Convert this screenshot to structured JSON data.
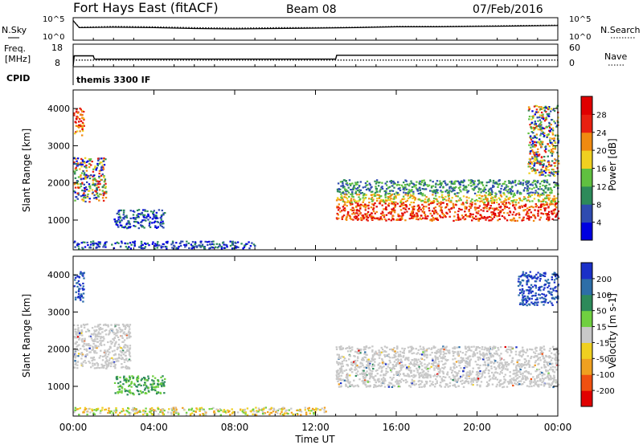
{
  "header": {
    "title": "Fort Hays East (fitACF)",
    "beam": "Beam 08",
    "date": "07/Feb/2016"
  },
  "noise_panel": {
    "left_label": "N.Sky",
    "left_ticks": [
      "10^5",
      "10^0"
    ],
    "right_label": "N.Search",
    "right_ticks": [
      "10^5",
      "10^0"
    ]
  },
  "freq_panel": {
    "left_label_1": "Freq.",
    "left_label_2": "[MHz]",
    "left_ticks": [
      "18",
      "8"
    ],
    "right_label": "Nave",
    "right_ticks": [
      "60",
      "0"
    ],
    "cpid_label": "CPID",
    "cpid_value": "themis 3300 IF"
  },
  "time_axis": {
    "label": "Time UT",
    "ticks": [
      "00:00",
      "04:00",
      "08:00",
      "12:00",
      "16:00",
      "20:00",
      "00:00"
    ]
  },
  "chart_data": [
    {
      "type": "line",
      "name": "noise",
      "x_unit": "hours UT",
      "x_range": [
        0,
        24
      ],
      "series": [
        {
          "name": "N.Sky",
          "style": "solid",
          "x": [
            0,
            0.3,
            2,
            4,
            6,
            8,
            10,
            12,
            14,
            16,
            18,
            20,
            22,
            24
          ],
          "y_log": [
            4.5,
            2.8,
            2.9,
            2.8,
            2.6,
            2.5,
            2.6,
            2.7,
            2.8,
            3.0,
            3.0,
            3.1,
            3.2,
            3.3
          ]
        },
        {
          "name": "N.Search",
          "style": "dotted",
          "x": [
            0,
            0.3,
            2,
            4,
            6,
            8,
            10,
            12,
            14,
            16,
            18,
            20,
            22,
            24
          ],
          "y_log": [
            4.5,
            2.9,
            3.1,
            3.0,
            2.8,
            2.7,
            2.8,
            2.8,
            2.9,
            3.1,
            3.1,
            3.2,
            3.3,
            3.4
          ]
        }
      ]
    },
    {
      "type": "line",
      "name": "frequency-nave",
      "x_unit": "hours UT",
      "x_range": [
        0,
        24
      ],
      "series": [
        {
          "name": "Freq",
          "style": "solid",
          "x": [
            0,
            0.05,
            1.0,
            1.05,
            13.0,
            13.05,
            24
          ],
          "y": [
            8,
            13.2,
            13.2,
            11.5,
            11.5,
            13.5,
            13.5
          ]
        },
        {
          "name": "Nave",
          "style": "dotted",
          "x": [
            0,
            24
          ],
          "y": [
            18,
            18
          ]
        }
      ]
    },
    {
      "type": "heatmap",
      "name": "power",
      "xlabel": "Time UT",
      "ylabel": "Slant Range [km]",
      "x_range": [
        0,
        24
      ],
      "ylim": [
        200,
        4500
      ],
      "y_ticks": [
        1000,
        2000,
        3000,
        4000
      ],
      "colorbar": {
        "label": "Power [dB]",
        "ticks": [
          "4",
          "8",
          "12",
          "16",
          "20",
          "24",
          "28"
        ],
        "colors": [
          "#0000e0",
          "#2f4bb0",
          "#2d8a5a",
          "#60c040",
          "#f0d020",
          "#f08a10",
          "#e82010",
          "#e00000"
        ]
      },
      "regions": [
        {
          "t0": 0.0,
          "t1": 0.5,
          "r0": 3300,
          "r1": 4100,
          "level": "high"
        },
        {
          "t0": 0.0,
          "t1": 1.6,
          "r0": 1500,
          "r1": 2700,
          "level": "mixed"
        },
        {
          "t0": 2.0,
          "t1": 4.5,
          "r0": 800,
          "r1": 1300,
          "level": "low"
        },
        {
          "t0": 0.0,
          "t1": 9.0,
          "r0": 250,
          "r1": 450,
          "level": "low"
        },
        {
          "t0": 13.0,
          "t1": 24.0,
          "r0": 1000,
          "r1": 2100,
          "level": "high-core"
        },
        {
          "t0": 22.5,
          "t1": 24.0,
          "r0": 2200,
          "r1": 4100,
          "level": "mixed"
        }
      ]
    },
    {
      "type": "heatmap",
      "name": "velocity",
      "xlabel": "Time UT",
      "ylabel": "Slant Range [km]",
      "x_range": [
        0,
        24
      ],
      "ylim": [
        200,
        4500
      ],
      "y_ticks": [
        1000,
        2000,
        3000,
        4000
      ],
      "colorbar": {
        "label": "Velocity [m s-1]",
        "ticks": [
          "200",
          "100",
          "50",
          "15",
          "-15",
          "-50",
          "-100",
          "-200"
        ],
        "colors": [
          "#1a30c8",
          "#2d6ea8",
          "#2d8a5a",
          "#70d040",
          "#c8c8c8",
          "#f0d020",
          "#f0a020",
          "#f05010",
          "#e00000"
        ]
      },
      "regions": [
        {
          "t0": 0.0,
          "t1": 0.5,
          "r0": 3300,
          "r1": 4100,
          "level": "200"
        },
        {
          "t0": 0.0,
          "t1": 2.8,
          "r0": 1500,
          "r1": 2700,
          "level": "-15..15"
        },
        {
          "t0": 2.0,
          "t1": 4.5,
          "r0": 800,
          "r1": 1300,
          "level": "15..50"
        },
        {
          "t0": 0.0,
          "t1": 12.5,
          "r0": 250,
          "r1": 450,
          "level": "-50..15"
        },
        {
          "t0": 13.0,
          "t1": 24.0,
          "r0": 1000,
          "r1": 2100,
          "level": "-15..15"
        },
        {
          "t0": 22.0,
          "t1": 24.0,
          "r0": 3200,
          "r1": 4100,
          "level": "200"
        }
      ]
    }
  ]
}
